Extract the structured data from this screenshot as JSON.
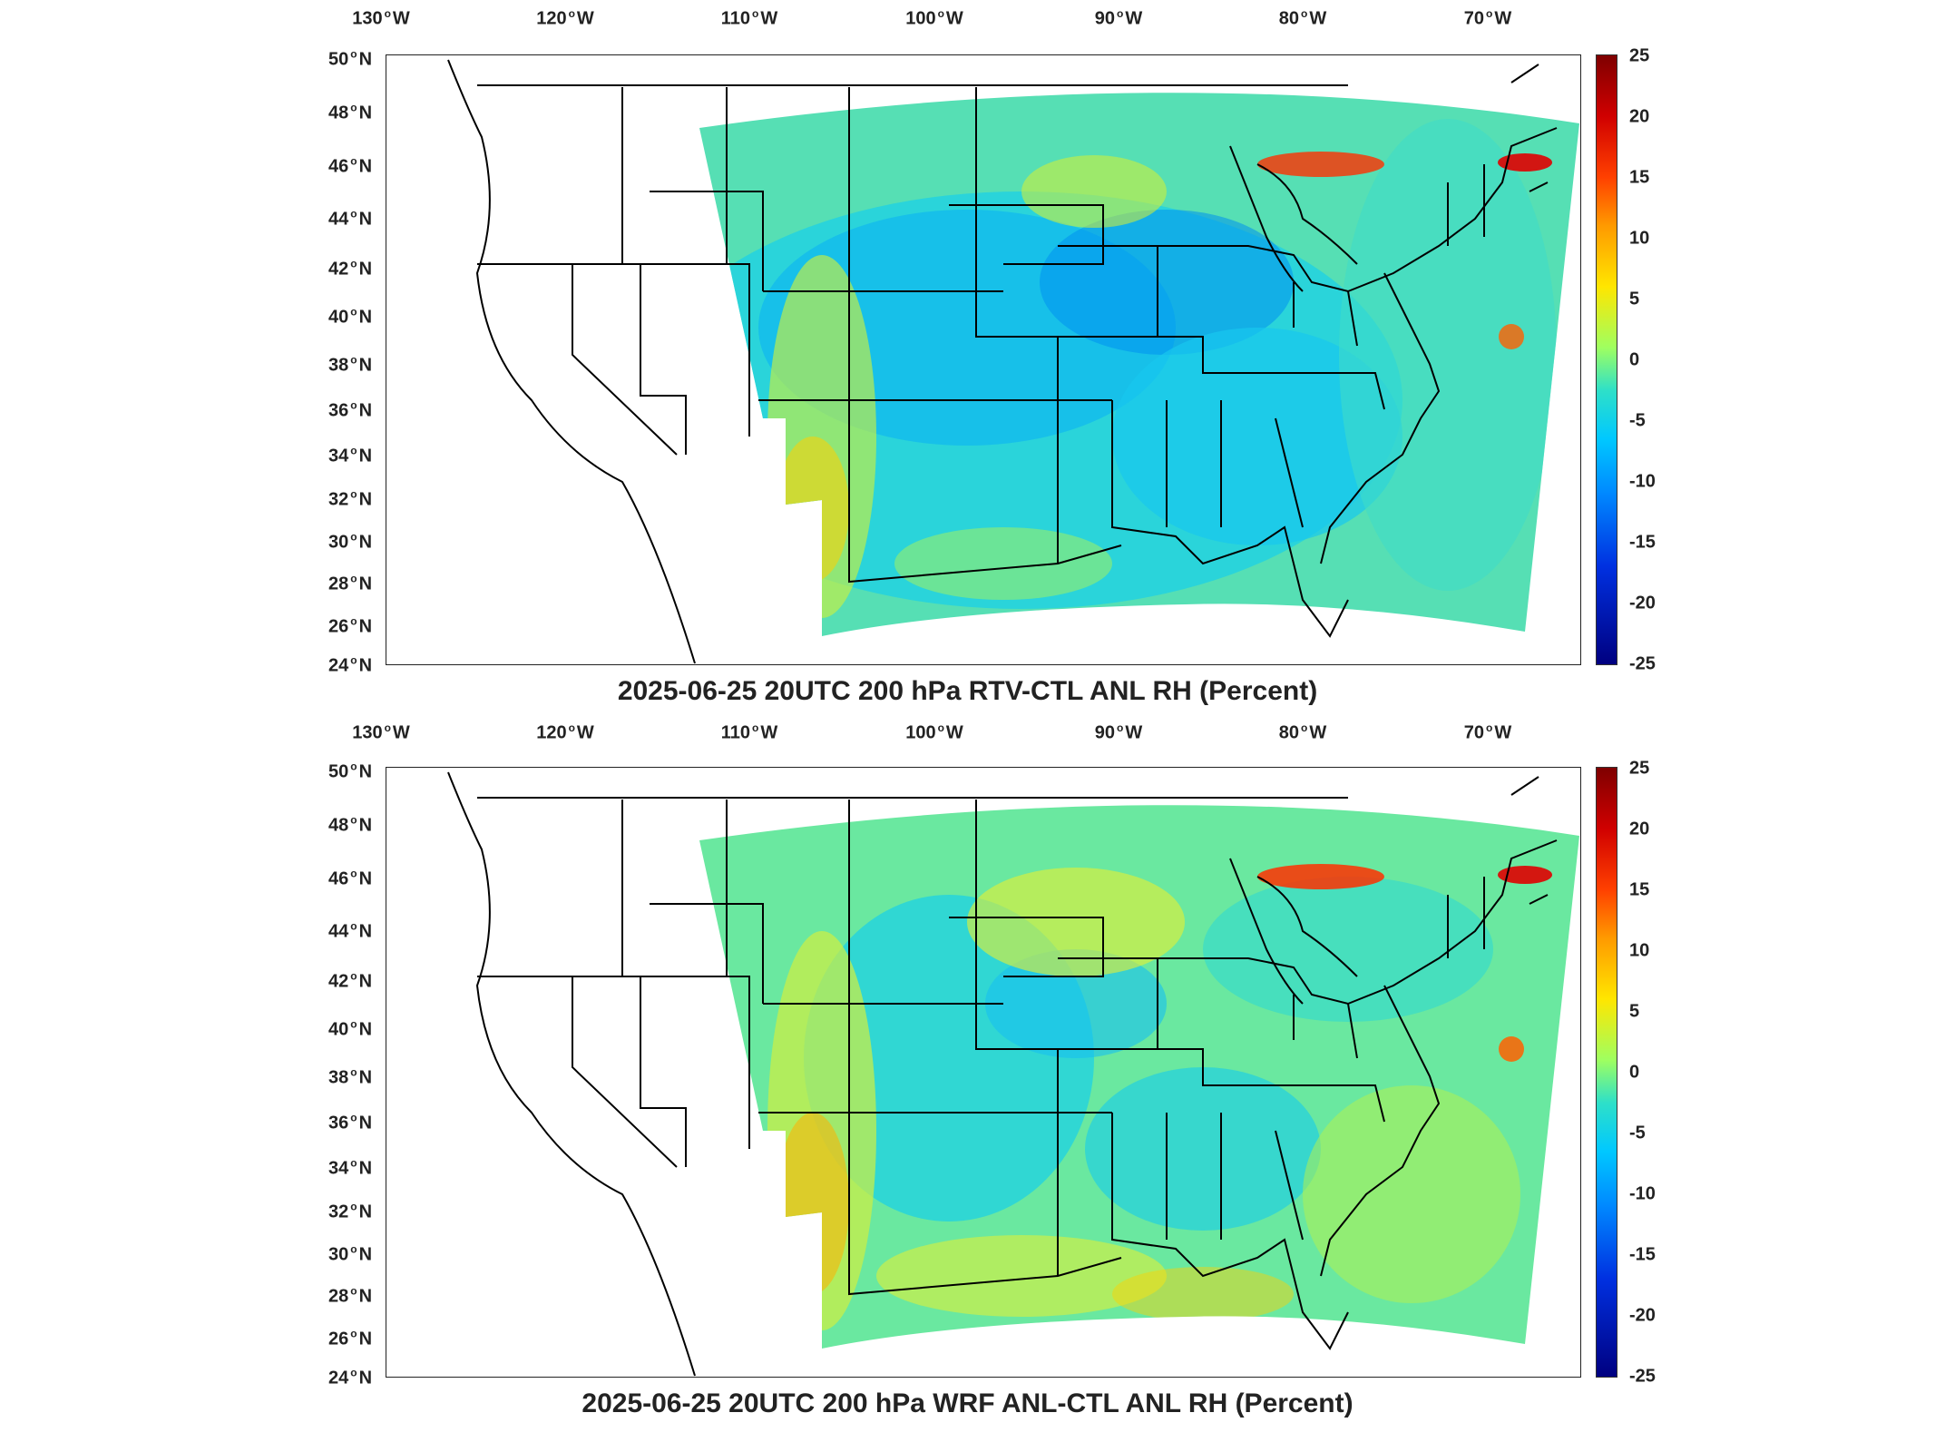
{
  "lon_ticks": [
    "130",
    "120",
    "110",
    "100",
    "90",
    "80",
    "70"
  ],
  "lon_hemisphere": "W",
  "lat_ticks": [
    "50",
    "48",
    "46",
    "44",
    "42",
    "40",
    "38",
    "36",
    "34",
    "32",
    "30",
    "28",
    "26",
    "24"
  ],
  "lat_hemisphere": "N",
  "colorbar": {
    "min": -25,
    "max": 25,
    "labels": [
      "25",
      "20",
      "15",
      "10",
      "5",
      "0",
      "-5",
      "-10",
      "-15",
      "-20",
      "-25"
    ],
    "colormap": "jet"
  },
  "panels": [
    {
      "title": "2025-06-25 20UTC 200 hPa RTV-CTL ANL RH (Percent)"
    },
    {
      "title": "2025-06-25 20UTC 200 hPa WRF ANL-CTL ANL RH (Percent)"
    }
  ],
  "colors": {
    "background": "#ffffff",
    "land_outline": "#000000",
    "field_base": "#5de6a8"
  }
}
